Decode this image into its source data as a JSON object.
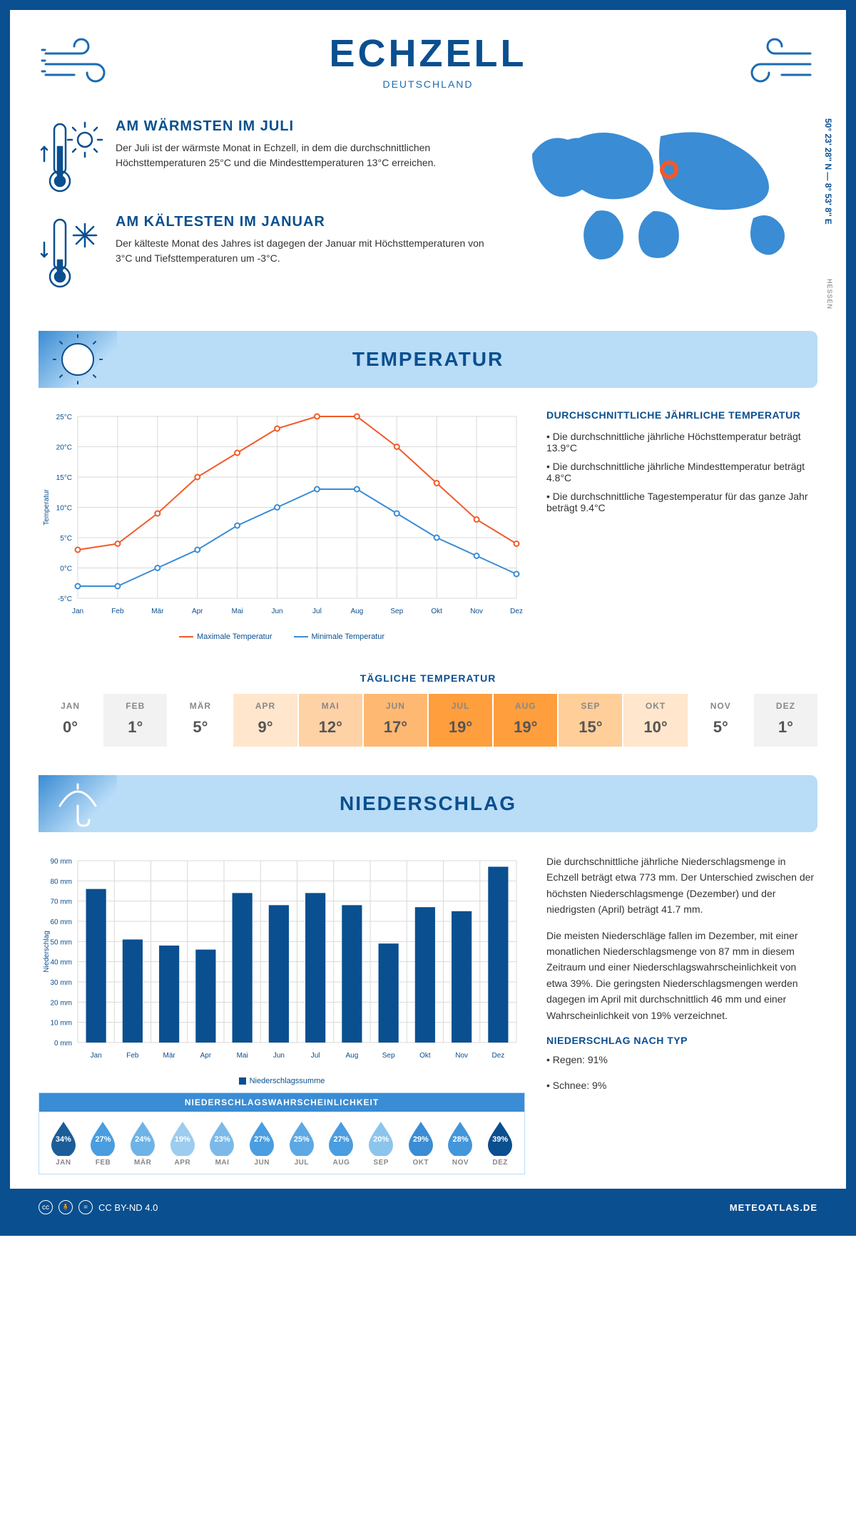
{
  "header": {
    "title": "ECHZELL",
    "subtitle": "DEUTSCHLAND"
  },
  "facts": {
    "warm": {
      "title": "AM WÄRMSTEN IM JULI",
      "text": "Der Juli ist der wärmste Monat in Echzell, in dem die durchschnittlichen Höchsttemperaturen 25°C und die Mindesttemperaturen 13°C erreichen."
    },
    "cold": {
      "title": "AM KÄLTESTEN IM JANUAR",
      "text": "Der kälteste Monat des Jahres ist dagegen der Januar mit Höchsttemperaturen von 3°C und Tiefsttemperaturen um -3°C."
    }
  },
  "coords": "50° 23' 28'' N — 8° 53' 8'' E",
  "region": "HESSEN",
  "sections": {
    "temperature": "TEMPERATUR",
    "precipitation": "NIEDERSCHLAG"
  },
  "temp_chart": {
    "type": "line",
    "months": [
      "Jan",
      "Feb",
      "Mär",
      "Apr",
      "Mai",
      "Jun",
      "Jul",
      "Aug",
      "Sep",
      "Okt",
      "Nov",
      "Dez"
    ],
    "max": [
      3,
      4,
      9,
      15,
      19,
      23,
      25,
      25,
      20,
      14,
      8,
      4
    ],
    "min": [
      -3,
      -3,
      0,
      3,
      7,
      10,
      13,
      13,
      9,
      5,
      2,
      -1
    ],
    "max_color": "#f15a29",
    "min_color": "#3a8cd4",
    "ylabel": "Temperatur",
    "ylim": [
      -5,
      25
    ],
    "ytick_step": 5,
    "grid_color": "#d9d9d9",
    "legend_max": "Maximale Temperatur",
    "legend_min": "Minimale Temperatur",
    "line_width": 2,
    "marker": "circle"
  },
  "temp_summary": {
    "title": "DURCHSCHNITTLICHE JÄHRLICHE TEMPERATUR",
    "bullets": [
      "• Die durchschnittliche jährliche Höchsttemperatur beträgt 13.9°C",
      "• Die durchschnittliche jährliche Mindesttemperatur beträgt 4.8°C",
      "• Die durchschnittliche Tagestemperatur für das ganze Jahr beträgt 9.4°C"
    ]
  },
  "daily_temp": {
    "title": "TÄGLICHE TEMPERATUR",
    "months": [
      "JAN",
      "FEB",
      "MÄR",
      "APR",
      "MAI",
      "JUN",
      "JUL",
      "AUG",
      "SEP",
      "OKT",
      "NOV",
      "DEZ"
    ],
    "values": [
      "0°",
      "1°",
      "5°",
      "9°",
      "12°",
      "17°",
      "19°",
      "19°",
      "15°",
      "10°",
      "5°",
      "1°"
    ],
    "colors": [
      "#ffffff",
      "#f2f2f2",
      "#ffffff",
      "#ffe6cc",
      "#ffd2a6",
      "#ffb872",
      "#ff9e3d",
      "#ff9e3d",
      "#ffce99",
      "#ffe6cc",
      "#ffffff",
      "#f2f2f2"
    ]
  },
  "precip_chart": {
    "type": "bar",
    "months": [
      "Jan",
      "Feb",
      "Mär",
      "Apr",
      "Mai",
      "Jun",
      "Jul",
      "Aug",
      "Sep",
      "Okt",
      "Nov",
      "Dez"
    ],
    "values": [
      76,
      51,
      48,
      46,
      74,
      68,
      74,
      68,
      49,
      67,
      65,
      87
    ],
    "bar_color": "#0a4f8f",
    "ylabel": "Niederschlag",
    "ylim": [
      0,
      90
    ],
    "ytick_step": 10,
    "y_unit": " mm",
    "grid_color": "#d9d9d9",
    "legend": "Niederschlagssumme",
    "bar_width": 0.55
  },
  "precip_text": {
    "p1": "Die durchschnittliche jährliche Niederschlagsmenge in Echzell beträgt etwa 773 mm. Der Unterschied zwischen der höchsten Niederschlagsmenge (Dezember) und der niedrigsten (April) beträgt 41.7 mm.",
    "p2": "Die meisten Niederschläge fallen im Dezember, mit einer monatlichen Niederschlagsmenge von 87 mm in diesem Zeitraum und einer Niederschlagswahrscheinlichkeit von etwa 39%. Die geringsten Niederschlagsmengen werden dagegen im April mit durchschnittlich 46 mm und einer Wahrscheinlichkeit von 19% verzeichnet.",
    "type_title": "NIEDERSCHLAG NACH TYP",
    "type_rain": "• Regen: 91%",
    "type_snow": "• Schnee: 9%"
  },
  "precip_prob": {
    "title": "NIEDERSCHLAGSWAHRSCHEINLICHKEIT",
    "months": [
      "JAN",
      "FEB",
      "MÄR",
      "APR",
      "MAI",
      "JUN",
      "JUL",
      "AUG",
      "SEP",
      "OKT",
      "NOV",
      "DEZ"
    ],
    "values": [
      "34%",
      "27%",
      "24%",
      "19%",
      "23%",
      "27%",
      "25%",
      "27%",
      "20%",
      "29%",
      "28%",
      "39%"
    ],
    "colors": [
      "#1a5d99",
      "#4a9de0",
      "#6eb3e8",
      "#9cccee",
      "#7cb9e8",
      "#4a9de0",
      "#5ca8e4",
      "#4a9de0",
      "#8cc5ec",
      "#3a8cd4",
      "#4496da",
      "#0a4f8f"
    ]
  },
  "footer": {
    "license": "CC BY-ND 4.0",
    "site": "METEOATLAS.DE"
  },
  "colors": {
    "primary": "#0a4f8f",
    "banner": "#b9dcf7",
    "accent": "#3a8cd4"
  }
}
